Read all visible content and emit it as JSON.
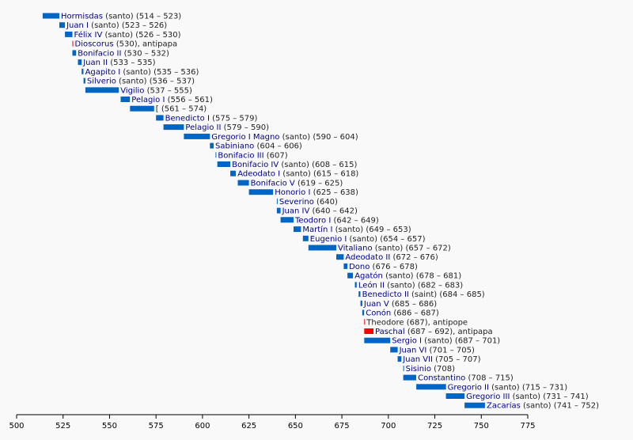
{
  "chart_data": {
    "type": "timeline",
    "xlim": [
      500,
      775
    ],
    "xticks": [
      500,
      525,
      550,
      575,
      600,
      625,
      650,
      675,
      700,
      725,
      750,
      775
    ],
    "colors": {
      "pope": "#0066c5",
      "antipope": "#ff0000",
      "name_text": "#00008b"
    },
    "entries": [
      {
        "name": "Hormisdas",
        "extra": " (santo) (514 – 523)",
        "start": 514,
        "end": 523,
        "kind": "pope"
      },
      {
        "name": "Juan I",
        "extra": " (santo) (523 – 526)",
        "start": 523,
        "end": 526,
        "kind": "pope"
      },
      {
        "name": "Félix IV",
        "extra": " (santo) (526 – 530)",
        "start": 526,
        "end": 530,
        "kind": "pope"
      },
      {
        "name": "Dioscorus",
        "extra": " (530), antipapa",
        "start": 530,
        "end": 530,
        "kind": "antipope"
      },
      {
        "name": "Bonifacio II",
        "extra": " (530 – 532)",
        "start": 530,
        "end": 532,
        "kind": "pope"
      },
      {
        "name": "Juan II",
        "extra": " (533 – 535)",
        "start": 533,
        "end": 535,
        "kind": "pope"
      },
      {
        "name": "Agapito I",
        "extra": " (santo) (535 – 536)",
        "start": 535,
        "end": 536,
        "kind": "pope"
      },
      {
        "name": "Silverio",
        "extra": " (santo) (536 – 537)",
        "start": 536,
        "end": 537,
        "kind": "pope"
      },
      {
        "name": "Vigilio",
        "extra": " (537 – 555)",
        "start": 537,
        "end": 555,
        "kind": "pope"
      },
      {
        "name": "Pelagio I",
        "extra": " (556 – 561)",
        "start": 556,
        "end": 561,
        "kind": "pope"
      },
      {
        "name": "",
        "extra": "[ (561 – 574)",
        "start": 561,
        "end": 574,
        "kind": "pope"
      },
      {
        "name": "Benedicto I",
        "extra": " (575 – 579)",
        "start": 575,
        "end": 579,
        "kind": "pope"
      },
      {
        "name": "Pelagio II",
        "extra": " (579 – 590)",
        "start": 579,
        "end": 590,
        "kind": "pope"
      },
      {
        "name": "Gregorio I Magno",
        "extra": " (santo) (590 – 604)",
        "start": 590,
        "end": 604,
        "kind": "pope"
      },
      {
        "name": "Sabiniano",
        "extra": " (604 – 606)",
        "start": 604,
        "end": 606,
        "kind": "pope"
      },
      {
        "name": "Bonifacio III",
        "extra": " (607)",
        "start": 607,
        "end": 607,
        "kind": "pope"
      },
      {
        "name": "Bonifacio IV",
        "extra": " (santo) (608 – 615)",
        "start": 608,
        "end": 615,
        "kind": "pope"
      },
      {
        "name": "Adeodato I",
        "extra": " (santo) (615 – 618)",
        "start": 615,
        "end": 618,
        "kind": "pope"
      },
      {
        "name": "Bonifacio V",
        "extra": " (619 – 625)",
        "start": 619,
        "end": 625,
        "kind": "pope"
      },
      {
        "name": "Honorio I",
        "extra": " (625 – 638)",
        "start": 625,
        "end": 638,
        "kind": "pope"
      },
      {
        "name": "Severino",
        "extra": " (640)",
        "start": 640,
        "end": 640,
        "kind": "pope"
      },
      {
        "name": "Juan IV",
        "extra": " (640 – 642)",
        "start": 640,
        "end": 642,
        "kind": "pope"
      },
      {
        "name": "Teodoro I",
        "extra": " (642 – 649)",
        "start": 642,
        "end": 649,
        "kind": "pope"
      },
      {
        "name": "Martín I",
        "extra": " (santo) (649 – 653)",
        "start": 649,
        "end": 653,
        "kind": "pope"
      },
      {
        "name": "Eugenio I",
        "extra": " (santo) (654 – 657)",
        "start": 654,
        "end": 657,
        "kind": "pope"
      },
      {
        "name": "Vitaliano",
        "extra": " (santo) (657 – 672)",
        "start": 657,
        "end": 672,
        "kind": "pope"
      },
      {
        "name": "Adeodato II",
        "extra": " (672 – 676)",
        "start": 672,
        "end": 676,
        "kind": "pope"
      },
      {
        "name": "Dono",
        "extra": " (676 – 678)",
        "start": 676,
        "end": 678,
        "kind": "pope"
      },
      {
        "name": "Agatón",
        "extra": " (santo) (678 – 681)",
        "start": 678,
        "end": 681,
        "kind": "pope"
      },
      {
        "name": "León II",
        "extra": " (santo) (682 – 683)",
        "start": 682,
        "end": 683,
        "kind": "pope"
      },
      {
        "name": "Benedicto II",
        "extra": " (saint) (684 – 685)",
        "start": 684,
        "end": 685,
        "kind": "pope"
      },
      {
        "name": "Juan V",
        "extra": " (685 – 686)",
        "start": 685,
        "end": 686,
        "kind": "pope"
      },
      {
        "name": "Conón",
        "extra": " (686 – 687)",
        "start": 686,
        "end": 687,
        "kind": "pope"
      },
      {
        "name": "",
        "extra": "Theodore (687), antipope",
        "start": 687,
        "end": 687,
        "kind": "antipope"
      },
      {
        "name": "Paschal",
        "extra": " (687 – 692), antipapa",
        "start": 687,
        "end": 692,
        "kind": "antipope"
      },
      {
        "name": "Sergio I",
        "extra": " (santo) (687 – 701)",
        "start": 687,
        "end": 701,
        "kind": "pope"
      },
      {
        "name": "Juan VI",
        "extra": " (701 – 705)",
        "start": 701,
        "end": 705,
        "kind": "pope"
      },
      {
        "name": "Juan VII",
        "extra": " (705 – 707)",
        "start": 705,
        "end": 707,
        "kind": "pope"
      },
      {
        "name": "Sisinio",
        "extra": " (708)",
        "start": 708,
        "end": 708,
        "kind": "pope"
      },
      {
        "name": "Constantino",
        "extra": " (708 – 715)",
        "start": 708,
        "end": 715,
        "kind": "pope"
      },
      {
        "name": "Gregorio II",
        "extra": " (santo) (715 – 731)",
        "start": 715,
        "end": 731,
        "kind": "pope"
      },
      {
        "name": "Gregorio III",
        "extra": " (santo) (731 – 741)",
        "start": 731,
        "end": 741,
        "kind": "pope"
      },
      {
        "name": "Zacarías",
        "extra": " (santo) (741 – 752)",
        "start": 741,
        "end": 752,
        "kind": "pope"
      }
    ]
  }
}
